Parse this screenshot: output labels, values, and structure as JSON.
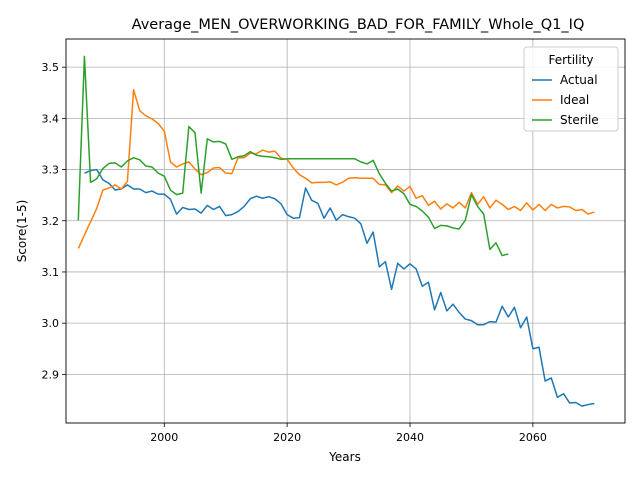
{
  "chart_data": {
    "type": "line",
    "title": "Average_MEN_OVERWORKING_BAD_FOR_FAMILY_Whole_Q1_IQ",
    "xlabel": "Years",
    "ylabel": "Score(1-5)",
    "xlim": [
      1984,
      2075
    ],
    "ylim": [
      2.805,
      3.555
    ],
    "xticks": [
      2000,
      2020,
      2040,
      2060
    ],
    "yticks": [
      2.9,
      3.0,
      3.1,
      3.2,
      3.3,
      3.4,
      3.5
    ],
    "xtick_labels": [
      "2000",
      "2020",
      "2040",
      "2060"
    ],
    "ytick_labels": [
      "2.9",
      "3.0",
      "3.1",
      "3.2",
      "3.3",
      "3.4",
      "3.5"
    ],
    "grid": true,
    "legend": {
      "title": "Fertility",
      "position": "top-right"
    },
    "series": [
      {
        "name": "Actual",
        "color": "#1f77b4",
        "x": [
          1987,
          1988,
          1989,
          1990,
          1991,
          1992,
          1993,
          1994,
          1995,
          1996,
          1997,
          1998,
          1999,
          2000,
          2001,
          2002,
          2003,
          2004,
          2005,
          2006,
          2007,
          2008,
          2009,
          2010,
          2011,
          2012,
          2013,
          2014,
          2015,
          2016,
          2017,
          2018,
          2019,
          2020,
          2021,
          2022,
          2023,
          2024,
          2025,
          2026,
          2027,
          2028,
          2029,
          2030,
          2031,
          2032,
          2033,
          2034,
          2035,
          2036,
          2037,
          2038,
          2039,
          2040,
          2041,
          2042,
          2043,
          2044,
          2045,
          2046,
          2047,
          2048,
          2049,
          2050,
          2051,
          2052,
          2053,
          2054,
          2055,
          2056,
          2057,
          2058,
          2059,
          2060,
          2061,
          2062,
          2063,
          2064,
          2065,
          2066,
          2067,
          2068,
          2069,
          2070
        ],
        "values": [
          3.293,
          3.298,
          3.3,
          3.28,
          3.273,
          3.26,
          3.262,
          3.27,
          3.262,
          3.262,
          3.255,
          3.258,
          3.252,
          3.252,
          3.242,
          3.213,
          3.226,
          3.222,
          3.223,
          3.215,
          3.23,
          3.222,
          3.228,
          3.21,
          3.212,
          3.218,
          3.228,
          3.243,
          3.248,
          3.244,
          3.247,
          3.243,
          3.233,
          3.212,
          3.205,
          3.206,
          3.264,
          3.24,
          3.234,
          3.205,
          3.225,
          3.201,
          3.212,
          3.208,
          3.205,
          3.194,
          3.156,
          3.178,
          3.11,
          3.12,
          3.066,
          3.117,
          3.106,
          3.116,
          3.106,
          3.072,
          3.08,
          3.026,
          3.06,
          3.024,
          3.037,
          3.021,
          3.008,
          3.005,
          2.997,
          2.997,
          3.003,
          3.002,
          3.033,
          3.012,
          3.031,
          2.991,
          3.012,
          2.95,
          2.953,
          2.887,
          2.893,
          2.855,
          2.862,
          2.844,
          2.845,
          2.838,
          2.841,
          2.843
        ]
      },
      {
        "name": "Ideal",
        "color": "#ff7f0e",
        "x": [
          1986,
          1987,
          1988,
          1989,
          1990,
          1991,
          1992,
          1993,
          1994,
          1995,
          1996,
          1997,
          1998,
          1999,
          2000,
          2001,
          2002,
          2003,
          2004,
          2005,
          2006,
          2007,
          2008,
          2009,
          2010,
          2011,
          2012,
          2013,
          2014,
          2015,
          2016,
          2017,
          2018,
          2019,
          2020,
          2021,
          2022,
          2023,
          2024,
          2025,
          2026,
          2027,
          2028,
          2029,
          2030,
          2031,
          2032,
          2033,
          2034,
          2035,
          2036,
          2037,
          2038,
          2039,
          2040,
          2041,
          2042,
          2043,
          2044,
          2045,
          2046,
          2047,
          2048,
          2049,
          2050,
          2051,
          2052,
          2053,
          2054,
          2055,
          2056,
          2057,
          2058,
          2059,
          2060,
          2061,
          2062,
          2063,
          2064,
          2065,
          2066,
          2067,
          2068,
          2069,
          2070
        ],
        "values": [
          3.146,
          3.172,
          3.198,
          3.224,
          3.26,
          3.264,
          3.27,
          3.262,
          3.277,
          3.456,
          3.415,
          3.405,
          3.399,
          3.39,
          3.375,
          3.315,
          3.305,
          3.311,
          3.315,
          3.301,
          3.29,
          3.294,
          3.303,
          3.304,
          3.293,
          3.292,
          3.323,
          3.323,
          3.332,
          3.331,
          3.338,
          3.334,
          3.336,
          3.322,
          3.32,
          3.303,
          3.29,
          3.283,
          3.274,
          3.275,
          3.275,
          3.276,
          3.27,
          3.275,
          3.283,
          3.284,
          3.283,
          3.283,
          3.283,
          3.271,
          3.27,
          3.255,
          3.268,
          3.258,
          3.267,
          3.244,
          3.249,
          3.23,
          3.238,
          3.223,
          3.233,
          3.225,
          3.236,
          3.225,
          3.255,
          3.232,
          3.247,
          3.225,
          3.24,
          3.232,
          3.222,
          3.228,
          3.22,
          3.235,
          3.221,
          3.232,
          3.22,
          3.232,
          3.225,
          3.228,
          3.227,
          3.22,
          3.222,
          3.213,
          3.217
        ]
      },
      {
        "name": "Sterile",
        "color": "#2ca02c",
        "x": [
          1986,
          1987,
          1988,
          1989,
          1990,
          1991,
          1992,
          1993,
          1994,
          1995,
          1996,
          1997,
          1998,
          1999,
          2000,
          2001,
          2002,
          2003,
          2004,
          2005,
          2006,
          2007,
          2008,
          2009,
          2010,
          2011,
          2012,
          2013,
          2014,
          2015,
          2016,
          2017,
          2018,
          2019,
          2020,
          2021,
          2022,
          2023,
          2024,
          2025,
          2026,
          2027,
          2028,
          2029,
          2030,
          2031,
          2032,
          2033,
          2034,
          2035,
          2036,
          2037,
          2038,
          2039,
          2040,
          2041,
          2042,
          2043,
          2044,
          2045,
          2046,
          2047,
          2048,
          2049,
          2050,
          2051,
          2052,
          2053,
          2054,
          2055,
          2056
        ],
        "values": [
          3.201,
          3.521,
          3.275,
          3.282,
          3.302,
          3.312,
          3.313,
          3.305,
          3.317,
          3.323,
          3.319,
          3.307,
          3.305,
          3.293,
          3.287,
          3.26,
          3.251,
          3.254,
          3.384,
          3.372,
          3.254,
          3.36,
          3.354,
          3.355,
          3.35,
          3.32,
          3.325,
          3.327,
          3.335,
          3.328,
          3.326,
          3.325,
          3.323,
          3.32,
          3.321,
          3.321,
          3.321,
          3.321,
          3.321,
          3.321,
          3.321,
          3.321,
          3.321,
          3.321,
          3.321,
          3.321,
          3.315,
          3.311,
          3.318,
          3.292,
          3.273,
          3.258,
          3.262,
          3.253,
          3.232,
          3.228,
          3.219,
          3.207,
          3.185,
          3.191,
          3.19,
          3.186,
          3.184,
          3.201,
          3.251,
          3.228,
          3.213,
          3.144,
          3.157,
          3.132,
          3.135
        ]
      }
    ]
  }
}
